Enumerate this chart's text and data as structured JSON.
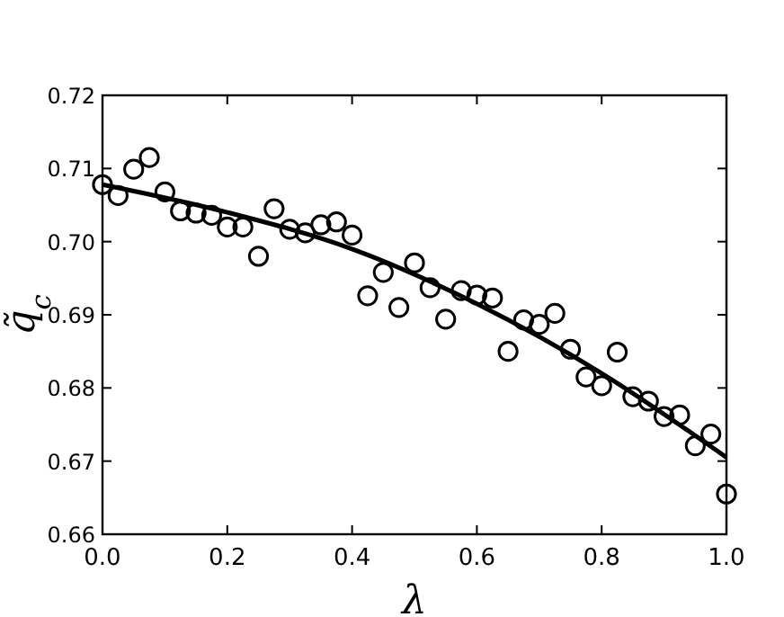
{
  "chart_data": {
    "type": "scatter",
    "xlabel": "λ",
    "ylabel": "q̃$_{c}$",
    "xlim": [
      0,
      1
    ],
    "ylim": [
      0.66,
      0.72
    ],
    "xticks": [
      {
        "value": 0,
        "label": "0.0"
      },
      0.2,
      0.4,
      0.6,
      0.8,
      {
        "value": 1,
        "label": "1.0"
      }
    ],
    "yticks": [
      {
        "value": 0.66,
        "label": "0.66"
      },
      0.67,
      0.68,
      0.69,
      {
        "value": 0.7,
        "label": "0.70"
      },
      0.71,
      {
        "value": 0.72,
        "label": "0.72"
      }
    ],
    "grid": false,
    "series": [
      {
        "color": "#000000",
        "marker": "circle",
        "x": [
          0,
          0.025,
          0.05,
          0.075,
          0.1,
          0.125,
          0.15,
          0.175,
          0.2,
          0.225,
          0.25,
          0.275,
          0.3,
          0.325,
          0.35,
          0.375,
          0.4,
          0.425,
          0.45,
          0.475,
          0.5,
          0.525,
          0.55,
          0.575,
          0.6,
          0.625,
          0.65,
          0.675,
          0.7,
          0.725,
          0.75,
          0.775,
          0.8,
          0.825,
          0.85,
          0.875,
          0.9,
          0.925,
          0.95,
          0.975,
          1.0
        ],
        "values": [
          0.7078,
          0.7063,
          0.7099,
          0.7115,
          0.7068,
          0.7042,
          0.7039,
          0.7036,
          0.702,
          0.702,
          0.698,
          0.7045,
          0.7017,
          0.7012,
          0.7023,
          0.7027,
          0.7009,
          0.6926,
          0.6958,
          0.691,
          0.6971,
          0.6937,
          0.6894,
          0.6933,
          0.6927,
          0.6923,
          0.685,
          0.6893,
          0.6887,
          0.6902,
          0.6853,
          0.6815,
          0.6803,
          0.6849,
          0.6788,
          0.6782,
          0.6761,
          0.6763,
          0.6721,
          0.6737,
          0.6655
        ]
      },
      {
        "type": "line",
        "color": "#000000",
        "x": [
          0,
          0.2,
          0.4,
          0.6,
          0.8,
          1.0
        ],
        "values": [
          0.7078,
          0.704,
          0.699,
          0.6915,
          0.682,
          0.6705
        ]
      }
    ]
  }
}
